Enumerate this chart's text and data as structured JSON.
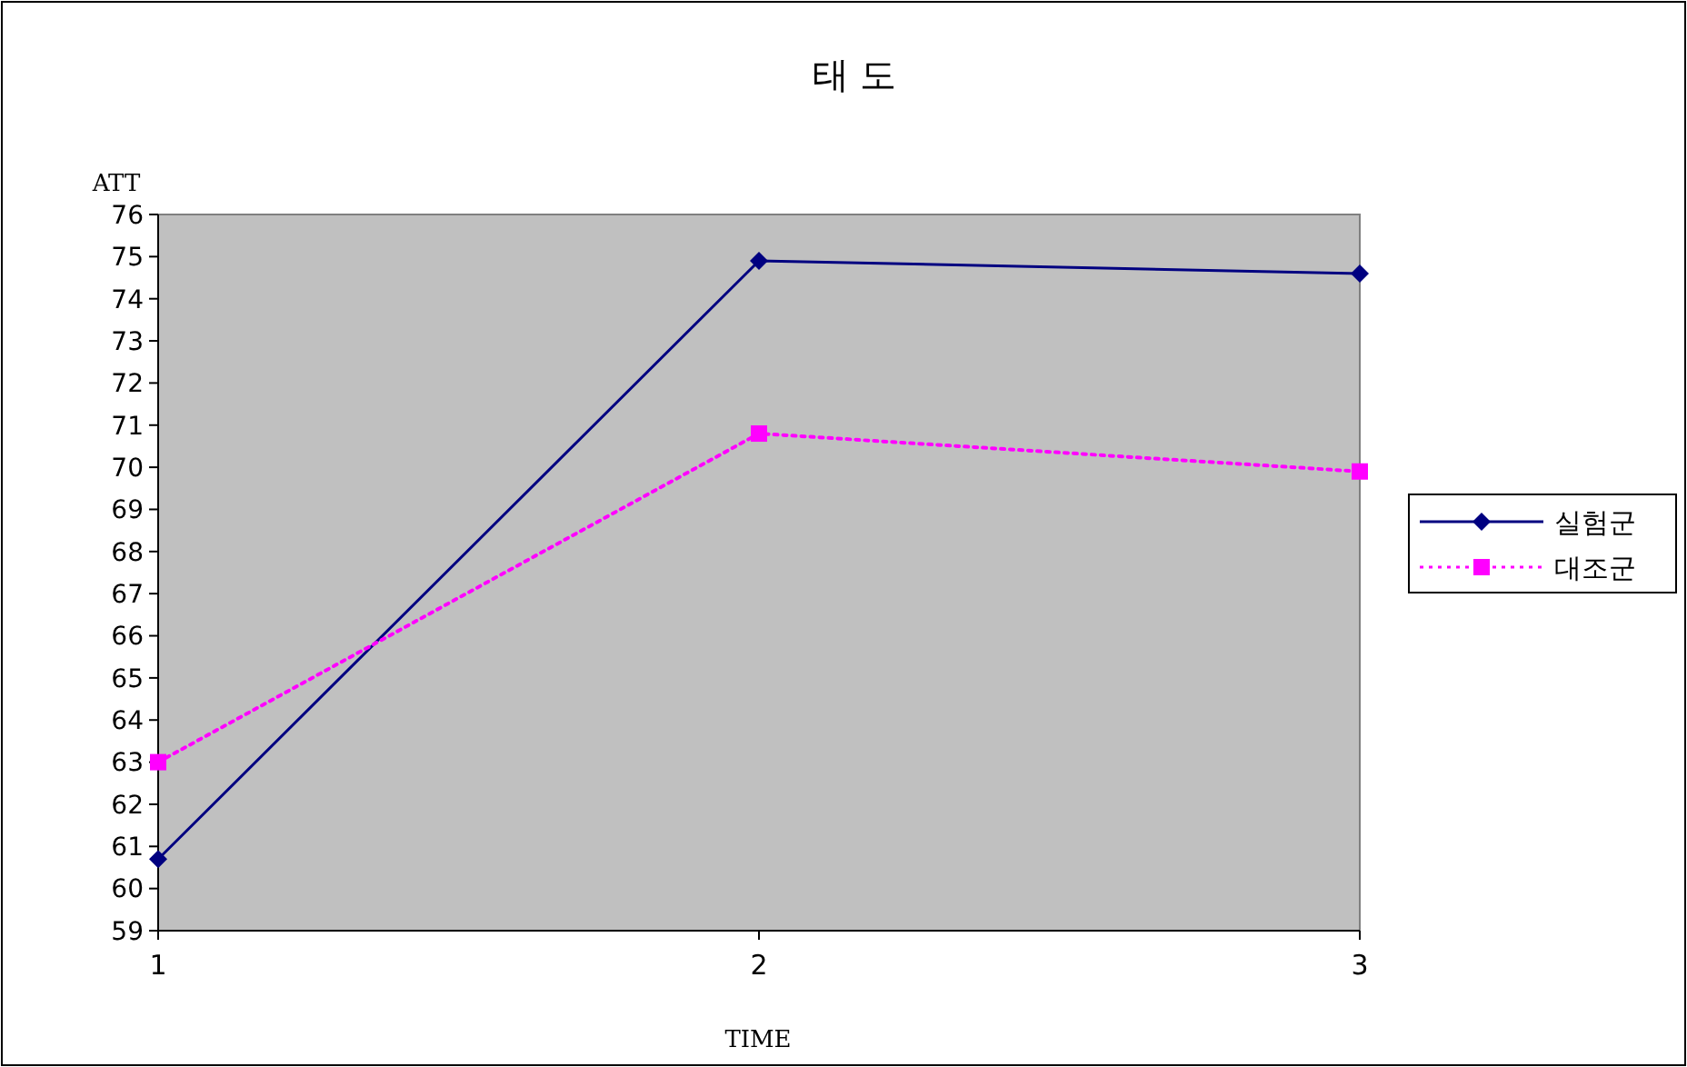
{
  "chart_data": {
    "type": "line",
    "title": "태  도",
    "xlabel": "TIME",
    "ylabel": "ATT",
    "x": [
      1,
      2,
      3
    ],
    "xlim": [
      1,
      3
    ],
    "xticks": [
      1,
      2,
      3
    ],
    "ylim": [
      59,
      76
    ],
    "yticks": [
      59,
      60,
      61,
      62,
      63,
      64,
      65,
      66,
      67,
      68,
      69,
      70,
      71,
      72,
      73,
      74,
      75,
      76
    ],
    "grid": false,
    "legend": "right",
    "series": [
      {
        "name": "실험군",
        "color": "#000080",
        "values": [
          60.7,
          74.9,
          74.6
        ],
        "marker": "diamond",
        "line_style": "solid"
      },
      {
        "name": "대조군",
        "color": "#ff00ff",
        "values": [
          63.0,
          70.8,
          69.9
        ],
        "marker": "square",
        "line_style": "dotted"
      }
    ]
  }
}
